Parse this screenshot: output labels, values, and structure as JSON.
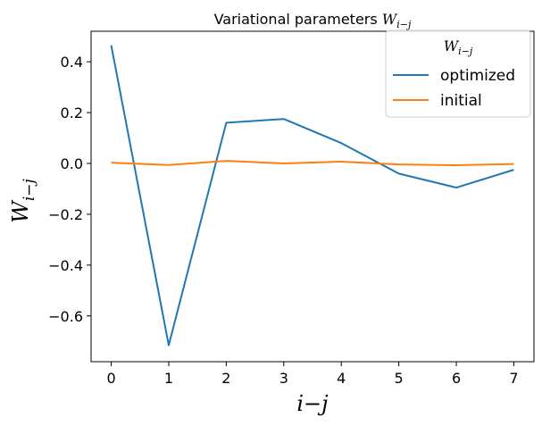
{
  "chart_data": {
    "type": "line",
    "title": "Variational parameters",
    "title_symbol": "W",
    "title_subscript": "i−j",
    "xlabel": "i−j",
    "ylabel_symbol": "W",
    "ylabel_subscript": "i−j",
    "x": [
      0,
      1,
      2,
      3,
      4,
      5,
      6,
      7
    ],
    "xlim": [
      -0.35,
      7.35
    ],
    "ylim": [
      -0.78,
      0.52
    ],
    "xticks": [
      0,
      1,
      2,
      3,
      4,
      5,
      6,
      7
    ],
    "yticks": [
      0.4,
      0.2,
      0.0,
      -0.2,
      -0.4,
      -0.6
    ],
    "xtick_labels": [
      "0",
      "1",
      "2",
      "3",
      "4",
      "5",
      "6",
      "7"
    ],
    "ytick_labels": [
      "0.4",
      "0.2",
      "0.0",
      "−0.2",
      "−0.4",
      "−0.6"
    ],
    "grid": false,
    "legend": {
      "title_symbol": "W",
      "title_subscript": "i−j",
      "placement": "top-right"
    },
    "series": [
      {
        "name": "optimized",
        "color": "#1f77b4",
        "values": [
          0.465,
          -0.715,
          0.16,
          0.175,
          0.08,
          -0.04,
          -0.095,
          -0.025
        ]
      },
      {
        "name": "initial",
        "color": "#ff7f0e",
        "values": [
          0.003,
          -0.006,
          0.01,
          0.0,
          0.007,
          -0.004,
          -0.007,
          -0.002
        ]
      }
    ]
  }
}
